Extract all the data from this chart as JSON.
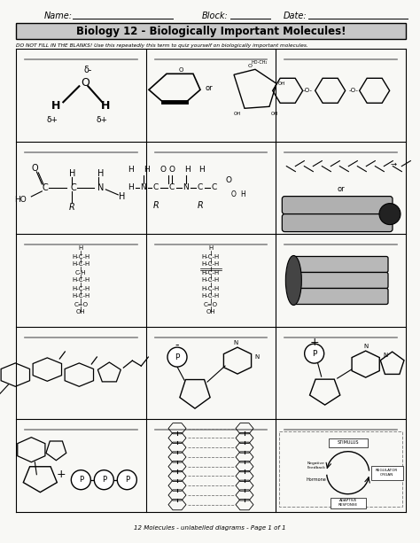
{
  "title": "Biology 12 - Biologically Important Molecules!",
  "subtitle": "DO NOT FILL IN THE BLANKS! Use this repeatedly this term to quiz yourself on biologically important molecules.",
  "header_name": "Name:",
  "header_block": "Block:",
  "header_date": "Date:",
  "footer": "12 Molecules - unlabelled diagrams - Page 1 of 1",
  "page_bg": "#f8f8f5",
  "title_bg": "#c8c8c8",
  "grid_lw": 0.8,
  "label_line_color": "#888888"
}
